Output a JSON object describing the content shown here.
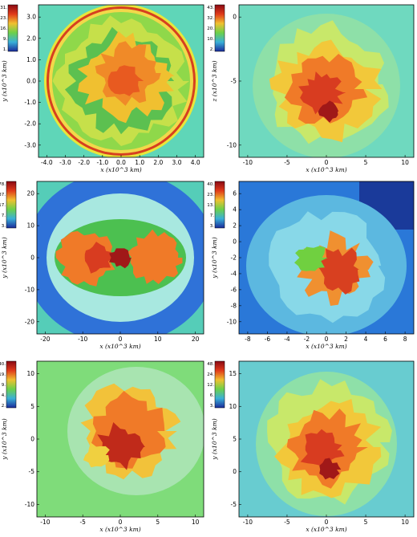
{
  "panels": [
    {
      "id": "p1",
      "xlabel": "x (x10^3 km)",
      "ylabel": "y (x10^3 km)",
      "xticks": [
        "-4.0",
        "-3.0",
        "-2.0",
        "-1.0",
        "0.0",
        "1.0",
        "2.0",
        "3.0",
        "4.0"
      ],
      "yticks": [
        "3.0",
        "2.0",
        "1.0",
        "0.0",
        "-1.0",
        "-2.0",
        "-3.0"
      ],
      "colorbar": [
        "31.",
        "23.",
        "16.",
        "9.",
        "1."
      ],
      "bg": "#5fd6b8",
      "style": "sphere"
    },
    {
      "id": "p2",
      "xlabel": "x (x10^3 km)",
      "ylabel": "z (x10^3 km)",
      "xticks": [
        "-10",
        "-5",
        "0",
        "5",
        "10"
      ],
      "yticks": [
        "0",
        "-5",
        "-10"
      ],
      "colorbar": [
        "43.",
        "32.",
        "20.",
        "10.",
        "2."
      ],
      "bg": "#6fd9bf",
      "style": "plume"
    },
    {
      "id": "p3",
      "xlabel": "x (x10^3 km)",
      "ylabel": "y (x10^3 km)",
      "xticks": [
        "-20",
        "-10",
        "0",
        "10",
        "20"
      ],
      "yticks": [
        "20",
        "10",
        "0",
        "-10",
        "-20"
      ],
      "colorbar": [
        "78.",
        "37.",
        "17.",
        "7.",
        "3."
      ],
      "bg": "#55cdb8",
      "style": "bipolar"
    },
    {
      "id": "p4",
      "xlabel": "x (x10^3 km)",
      "ylabel": "y (x10^3 km)",
      "xticks": [
        "-8",
        "-6",
        "-4",
        "-2",
        "0",
        "2",
        "4",
        "6",
        "8"
      ],
      "yticks": [
        "6",
        "4",
        "2",
        "0",
        "-2",
        "-4",
        "-6",
        "-8",
        "-10"
      ],
      "colorbar": [
        "40.",
        "23.",
        "13.",
        "7.",
        "3."
      ],
      "bg": "#2a78d8",
      "style": "blue"
    },
    {
      "id": "p5",
      "xlabel": "x (x10^3 km)",
      "ylabel": "y (x10^3 km)",
      "xticks": [
        "-10",
        "-5",
        "0",
        "5",
        "10"
      ],
      "yticks": [
        "10",
        "5",
        "0",
        "-5",
        "-10"
      ],
      "colorbar": [
        "40.",
        "19.",
        "9.",
        "4.",
        "2."
      ],
      "bg": "#7fdc7a",
      "style": "green"
    },
    {
      "id": "p6",
      "xlabel": "x (x10^3 km)",
      "ylabel": "y (x10^3 km)",
      "xticks": [
        "-10",
        "-5",
        "0",
        "5",
        "10"
      ],
      "yticks": [
        "15",
        "10",
        "5",
        "0",
        "-5"
      ],
      "colorbar": [
        "48.",
        "24.",
        "12.",
        "6.",
        "3."
      ],
      "bg": "#68ccd0",
      "style": "plume2"
    }
  ]
}
